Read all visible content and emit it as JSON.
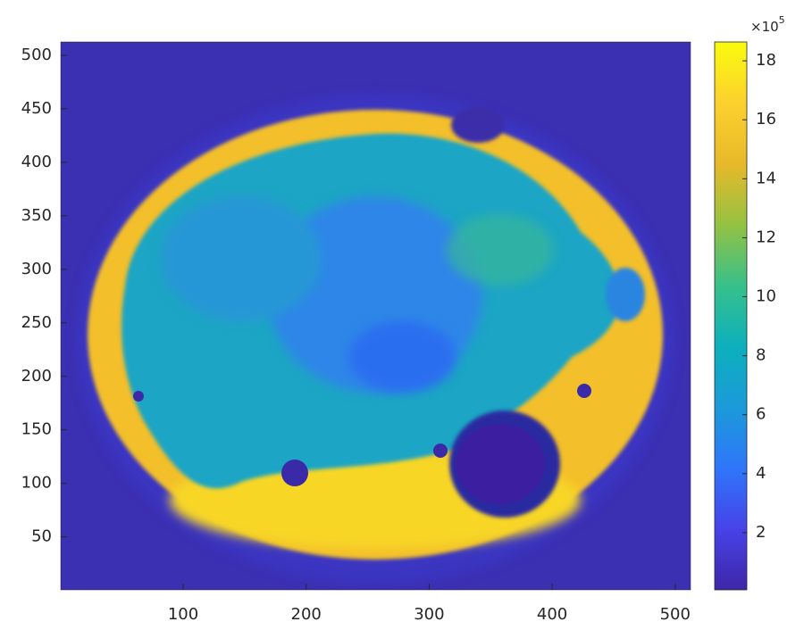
{
  "chart_data": {
    "type": "image",
    "xlim": [
      0.5,
      512.5
    ],
    "xticks": [
      100,
      200,
      300,
      400,
      500
    ],
    "ylim": [
      0.5,
      512.5
    ],
    "yticks": [
      50,
      100,
      150,
      200,
      250,
      300,
      350,
      400,
      450,
      500
    ],
    "clim": [
      6000,
      1864000
    ],
    "cticks": [
      {
        "value": 200000,
        "label": "2"
      },
      {
        "value": 400000,
        "label": "4"
      },
      {
        "value": 600000,
        "label": "6"
      },
      {
        "value": 800000,
        "label": "8"
      },
      {
        "value": 1000000,
        "label": "10"
      },
      {
        "value": 1200000,
        "label": "12"
      },
      {
        "value": 1400000,
        "label": "14"
      },
      {
        "value": 1600000,
        "label": "16"
      },
      {
        "value": 1800000,
        "label": "18"
      }
    ],
    "colorbar_multiplier": {
      "base": "×10",
      "exponent": "5"
    },
    "colormap": [
      "#3e26a8",
      "#4743e8",
      "#2f76fa",
      "#1b9ad9",
      "#0cb0bd",
      "#37c08a",
      "#95c242",
      "#e7b929",
      "#fcd12e",
      "#f9fb0e"
    ]
  }
}
